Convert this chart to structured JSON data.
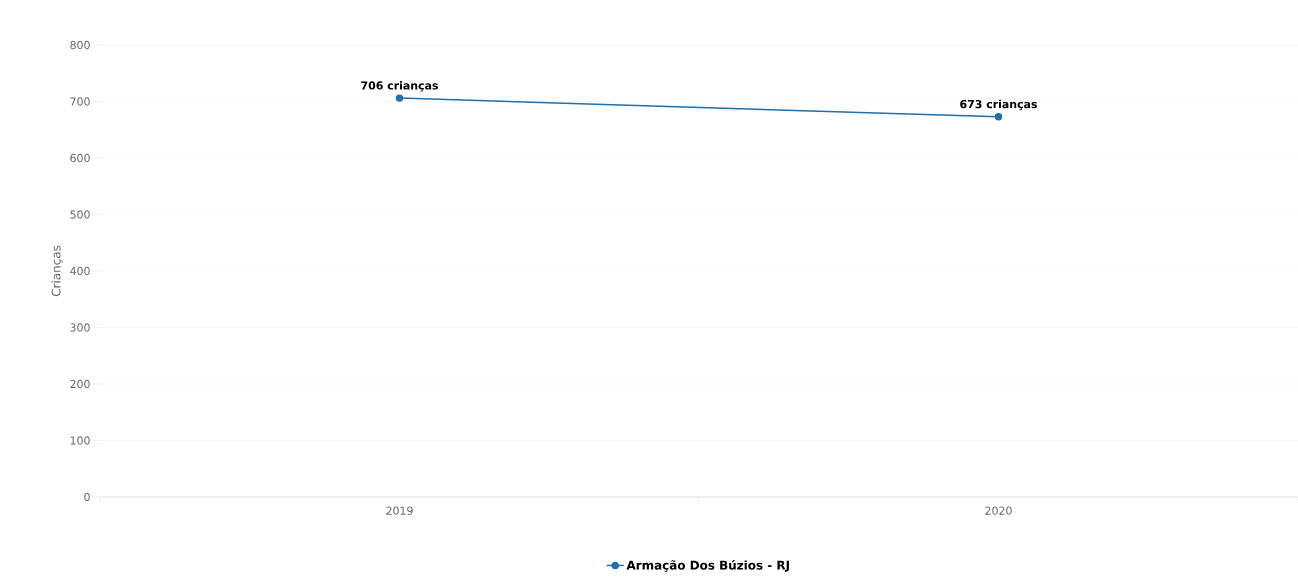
{
  "chart_data": {
    "type": "line",
    "ylabel": "Crianças",
    "categories": [
      "2019",
      "2020"
    ],
    "series": [
      {
        "name": "Armação Dos Búzios - RJ",
        "color": "#1f6fad",
        "values": [
          706,
          673
        ],
        "value_labels": [
          "706 crianças",
          "673 crianças"
        ]
      }
    ],
    "ylim": [
      0,
      800
    ],
    "yticks": [
      0,
      100,
      200,
      300,
      400,
      500,
      600,
      700,
      800
    ],
    "grid": "y",
    "legend": "bottom",
    "marker": "circle",
    "line_style": "solid"
  }
}
